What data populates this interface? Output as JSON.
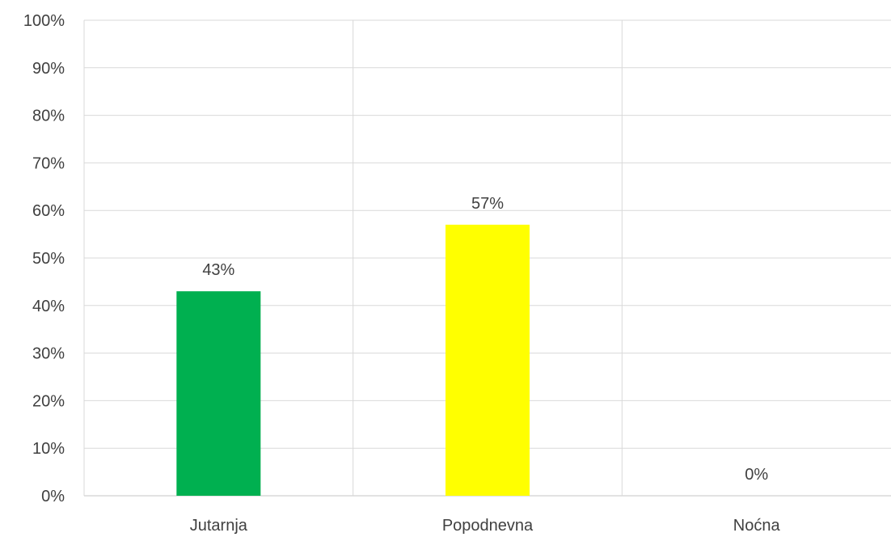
{
  "chart_data": {
    "type": "bar",
    "categories": [
      "Jutarnja",
      "Popodnevna",
      "Noćna"
    ],
    "values": [
      43,
      57,
      0
    ],
    "data_labels": [
      "43%",
      "57%",
      "0%"
    ],
    "colors": [
      "#00b050",
      "#ffff00",
      "#bfbfbf"
    ],
    "ylim": [
      0,
      100
    ],
    "yticks": [
      0,
      10,
      20,
      30,
      40,
      50,
      60,
      70,
      80,
      90,
      100
    ],
    "ytick_labels": [
      "0%",
      "10%",
      "20%",
      "30%",
      "40%",
      "50%",
      "60%",
      "70%",
      "80%",
      "90%",
      "100%"
    ],
    "grid": true,
    "vertical_category_separators": true,
    "title": "",
    "xlabel": "",
    "ylabel": ""
  }
}
